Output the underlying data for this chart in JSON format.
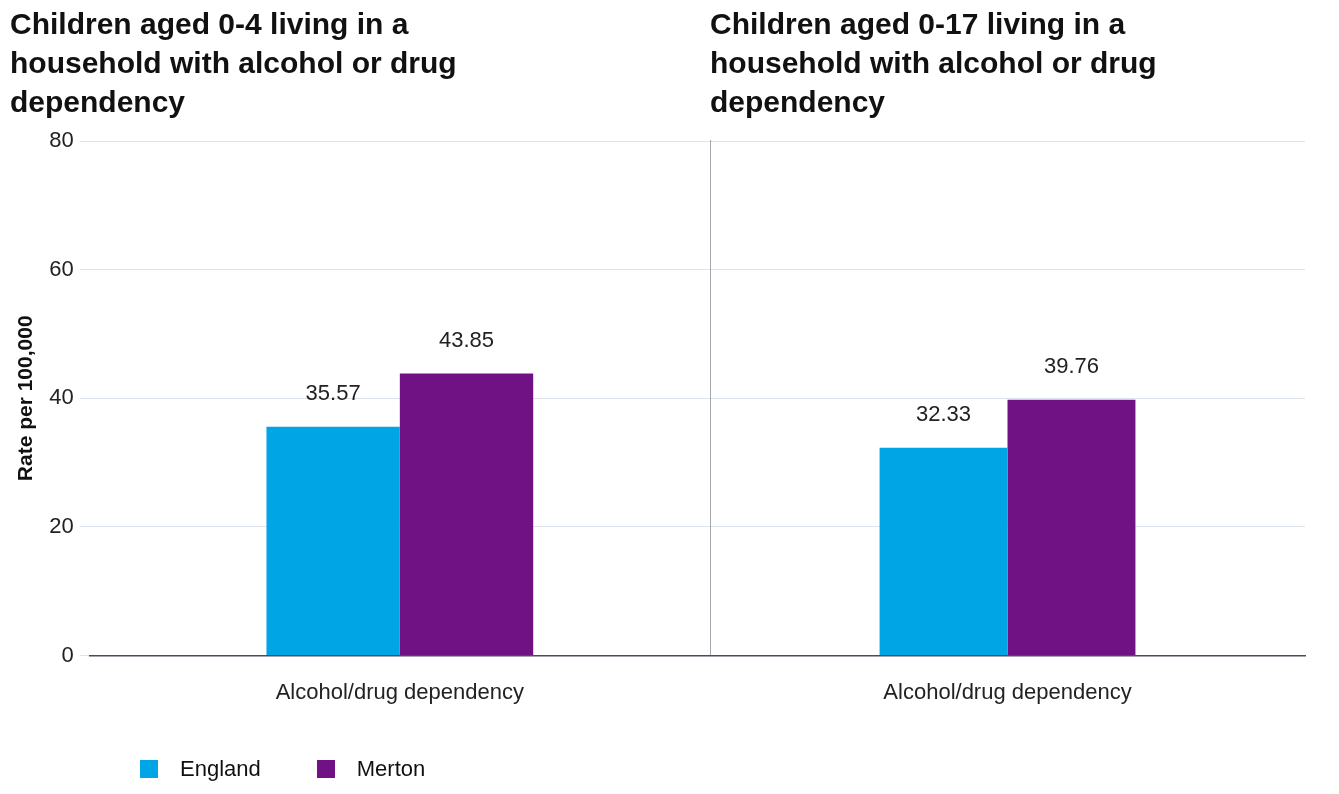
{
  "chart_data": [
    {
      "type": "bar",
      "title": "Children aged 0-4 living in a household with alcohol or drug dependency",
      "ylabel": "Rate per 100,000",
      "categories": [
        "Alcohol/drug dependency"
      ],
      "series": [
        {
          "name": "England",
          "color": "#00a5e6",
          "values": [
            35.57
          ]
        },
        {
          "name": "Merton",
          "color": "#701283",
          "values": [
            43.85
          ]
        }
      ],
      "ylim": [
        0,
        80
      ],
      "yticks": [
        0,
        20,
        40,
        60,
        80
      ],
      "grid": "y",
      "legend": "bottom left",
      "data_labels": true
    },
    {
      "type": "bar",
      "title": "Children aged 0-17 living in a household with alcohol or drug dependency",
      "categories": [
        "Alcohol/drug dependency"
      ],
      "series": [
        {
          "color": "#00a5e6",
          "values": [
            32.33
          ]
        },
        {
          "color": "#701283",
          "values": [
            39.76
          ]
        }
      ],
      "ylim": [
        0,
        80
      ],
      "yticks": [
        0,
        20,
        40,
        60,
        80
      ],
      "grid": "y",
      "tick_labels": "x",
      "data_labels": true
    }
  ]
}
